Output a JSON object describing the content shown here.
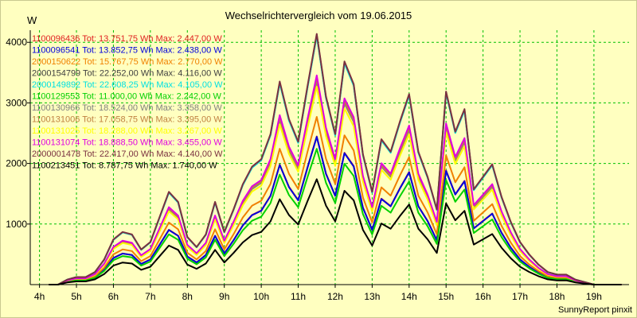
{
  "title": "Wechselrichtervergleich vom 19.06.2015",
  "footer": "SunnyReport pinxit",
  "chart_data": {
    "type": "line",
    "title": "Wechselrichtervergleich vom 19.06.2015",
    "ylabel": "W",
    "xlabel": "",
    "ylim": [
      0,
      4200
    ],
    "xlim": [
      3.75,
      19.95
    ],
    "yticks": [
      1000,
      2000,
      3000,
      4000
    ],
    "xticks": [
      {
        "value": 4,
        "label": "4h"
      },
      {
        "value": 5,
        "label": "5h"
      },
      {
        "value": 6,
        "label": "6h"
      },
      {
        "value": 7,
        "label": "7h"
      },
      {
        "value": 8,
        "label": "8h"
      },
      {
        "value": 9,
        "label": "9h"
      },
      {
        "value": 10,
        "label": "10h"
      },
      {
        "value": 11,
        "label": "11h"
      },
      {
        "value": 12,
        "label": "12h"
      },
      {
        "value": 13,
        "label": "13h"
      },
      {
        "value": 14,
        "label": "14h"
      },
      {
        "value": 15,
        "label": "15h"
      },
      {
        "value": 16,
        "label": "16h"
      },
      {
        "value": 17,
        "label": "17h"
      },
      {
        "value": 18,
        "label": "18h"
      },
      {
        "value": 19,
        "label": "19h"
      }
    ],
    "grid": true,
    "x": [
      4.25,
      4.5,
      4.75,
      5.0,
      5.25,
      5.5,
      5.75,
      6.0,
      6.25,
      6.5,
      6.75,
      7.0,
      7.25,
      7.5,
      7.75,
      8.0,
      8.25,
      8.5,
      8.75,
      9.0,
      9.25,
      9.5,
      9.75,
      10.0,
      10.25,
      10.5,
      10.75,
      11.0,
      11.25,
      11.5,
      11.75,
      12.0,
      12.25,
      12.5,
      12.75,
      13.0,
      13.25,
      13.5,
      13.75,
      14.0,
      14.25,
      14.5,
      14.75,
      15.0,
      15.25,
      15.5,
      15.75,
      16.0,
      16.25,
      16.5,
      16.75,
      17.0,
      17.25,
      17.5,
      17.75,
      18.0,
      18.25,
      18.5,
      18.75,
      19.0,
      19.25,
      19.5,
      19.75
    ],
    "profile": [
      0.0,
      0.0,
      0.02,
      0.03,
      0.03,
      0.05,
      0.1,
      0.18,
      0.21,
      0.2,
      0.14,
      0.17,
      0.27,
      0.37,
      0.33,
      0.19,
      0.15,
      0.2,
      0.33,
      0.21,
      0.3,
      0.4,
      0.47,
      0.5,
      0.6,
      0.81,
      0.66,
      0.57,
      0.79,
      1.0,
      0.75,
      0.6,
      0.89,
      0.8,
      0.52,
      0.37,
      0.58,
      0.53,
      0.65,
      0.76,
      0.53,
      0.43,
      0.3,
      0.77,
      0.61,
      0.7,
      0.38,
      0.43,
      0.48,
      0.35,
      0.25,
      0.17,
      0.12,
      0.08,
      0.05,
      0.04,
      0.04,
      0.02,
      0.01,
      0.0,
      0.0,
      0.0,
      0.0
    ],
    "series": [
      {
        "id": "1100096436",
        "label": "1100096436 Tot: 13.751,75 Wh Max: 2.447,00 W",
        "color": "#e02020",
        "max": 2447
      },
      {
        "id": "1100096541",
        "label": "1100096541 Tot: 13.852,75 Wh Max: 2.438,00 W",
        "color": "#0000dd",
        "max": 2438
      },
      {
        "id": "2000150622",
        "label": "2000150622 Tot: 15.767,75 Wh Max: 2.770,00 W",
        "color": "#f08000",
        "max": 2770
      },
      {
        "id": "2000154799",
        "label": "2000154799 Tot: 22.252,00 Wh Max: 4.116,00 W",
        "color": "#404040",
        "max": 4116
      },
      {
        "id": "2000149892",
        "label": "2000149892 Tot: 22.608,25 Wh Max: 4.105,00 W",
        "color": "#00e0e0",
        "max": 4105
      },
      {
        "id": "1100129553",
        "label": "1100129553 Tot: 11.000,00 Wh Max: 2.242,00 W",
        "color": "#00d000",
        "max": 2242
      },
      {
        "id": "1100130966",
        "label": "1100130966 Tot: 18.524,00 Wh Max: 3.358,00 W",
        "color": "#808080",
        "max": 3358
      },
      {
        "id": "1100131006",
        "label": "1100131006 Tot: 17.058,75 Wh Max: 3.395,00 W",
        "color": "#c08040",
        "max": 3395
      },
      {
        "id": "1100131025",
        "label": "1100131025 Tot: 18.288,00 Wh Max: 3.267,00 W",
        "color": "#ffff00",
        "max": 3267
      },
      {
        "id": "1100131074",
        "label": "1100131074 Tot: 18.888,50 Wh Max: 3.455,00 W",
        "color": "#e000e0",
        "max": 3455
      },
      {
        "id": "2000001478",
        "label": "2000001478 Tot: 22.417,00 Wh Max: 4.140,00 W",
        "color": "#7a3040",
        "max": 4140
      },
      {
        "id": "1100213451",
        "label": "1100213451 Tot: 8.787,75 Wh Max: 1.740,00 W",
        "color": "#000000",
        "max": 1740
      }
    ]
  }
}
